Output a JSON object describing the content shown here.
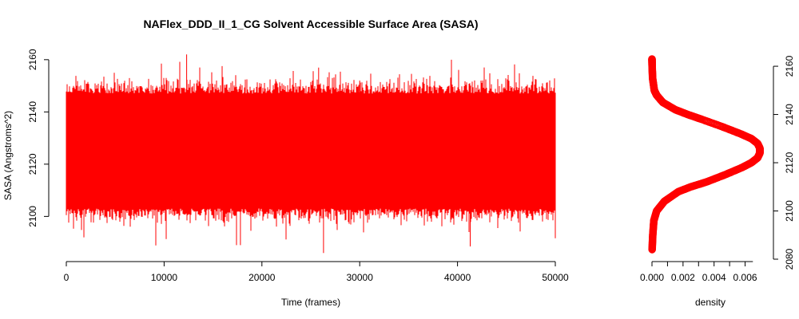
{
  "chart_data": [
    {
      "type": "line",
      "title": "NAFlex_DDD_II_1_CG Solvent Accessible Surface Area (SASA)",
      "xlabel": "Time (frames)",
      "ylabel": "SASA (Angstroms^2)",
      "xlim": [
        0,
        50000
      ],
      "ylim": [
        2085,
        2163
      ],
      "xticks": [
        0,
        10000,
        20000,
        30000,
        40000,
        50000
      ],
      "yticks": [
        2100,
        2120,
        2140,
        2160
      ],
      "grid": false,
      "series": [
        {
          "color": "#ff0000",
          "n_frames": 50000,
          "mean": 2125,
          "typical_range": [
            2103,
            2147
          ],
          "max": 2162,
          "min": 2086
        }
      ]
    },
    {
      "type": "scatter",
      "title": "",
      "xlabel": "density",
      "ylabel": "",
      "xlim": [
        0,
        0.007
      ],
      "ylim": [
        2080,
        2163
      ],
      "xticks": [
        0.0,
        0.002,
        0.004,
        0.006
      ],
      "xtick_labels": [
        "0.000",
        "0.002",
        "0.004",
        "0.006"
      ],
      "yticks": [
        2080,
        2100,
        2120,
        2140,
        2160
      ],
      "y_axis_side": "right",
      "series": [
        {
          "color": "#ff0000",
          "y": [
            2084,
            2090,
            2096,
            2100,
            2104,
            2108,
            2110,
            2112,
            2115,
            2118,
            2120,
            2122,
            2124,
            2126,
            2128,
            2130,
            2132,
            2135,
            2138,
            2140,
            2142,
            2145,
            2148,
            2150,
            2155,
            2160,
            2163
          ],
          "x": [
            1e-05,
            5e-05,
            0.00012,
            0.0003,
            0.0008,
            0.0017,
            0.0025,
            0.0035,
            0.0047,
            0.0058,
            0.0064,
            0.0068,
            0.00695,
            0.00695,
            0.0068,
            0.0064,
            0.0057,
            0.0045,
            0.0032,
            0.0023,
            0.0015,
            0.0007,
            0.0003,
            0.00015,
            4e-05,
            1e-05,
            0.0
          ]
        }
      ]
    }
  ]
}
